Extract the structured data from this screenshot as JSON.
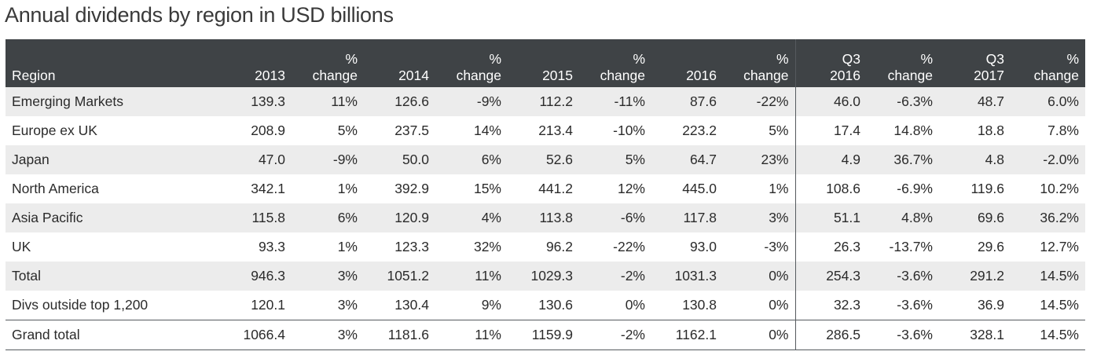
{
  "title": "Annual dividends by region in USD billions",
  "chart_data": {
    "type": "table",
    "title": "Annual dividends by region in USD billions",
    "columns": [
      "Region",
      "2013",
      "% change",
      "2014",
      "% change",
      "2015",
      "% change",
      "2016",
      "% change",
      "Q3 2016",
      "% change",
      "Q3 2017",
      "% change"
    ],
    "rows": [
      [
        "Emerging Markets",
        "139.3",
        "11%",
        "126.6",
        "-9%",
        "112.2",
        "-11%",
        "87.6",
        "-22%",
        "46.0",
        "-6.3%",
        "48.7",
        "6.0%"
      ],
      [
        "Europe ex UK",
        "208.9",
        "5%",
        "237.5",
        "14%",
        "213.4",
        "-10%",
        "223.2",
        "5%",
        "17.4",
        "14.8%",
        "18.8",
        "7.8%"
      ],
      [
        "Japan",
        "47.0",
        "-9%",
        "50.0",
        "6%",
        "52.6",
        "5%",
        "64.7",
        "23%",
        "4.9",
        "36.7%",
        "4.8",
        "-2.0%"
      ],
      [
        "North America",
        "342.1",
        "1%",
        "392.9",
        "15%",
        "441.2",
        "12%",
        "445.0",
        "1%",
        "108.6",
        "-6.9%",
        "119.6",
        "10.2%"
      ],
      [
        "Asia Pacific",
        "115.8",
        "6%",
        "120.9",
        "4%",
        "113.8",
        "-6%",
        "117.8",
        "3%",
        "51.1",
        "4.8%",
        "69.6",
        "36.2%"
      ],
      [
        "UK",
        "93.3",
        "1%",
        "123.3",
        "32%",
        "96.2",
        "-22%",
        "93.0",
        "-3%",
        "26.3",
        "-13.7%",
        "29.6",
        "12.7%"
      ],
      [
        "Total",
        "946.3",
        "3%",
        "1051.2",
        "11%",
        "1029.3",
        "-2%",
        "1031.3",
        "0%",
        "254.3",
        "-3.6%",
        "291.2",
        "14.5%"
      ],
      [
        "Divs outside top 1,200",
        "120.1",
        "3%",
        "130.4",
        "9%",
        "130.6",
        "0%",
        "130.8",
        "0%",
        "32.3",
        "-3.6%",
        "36.9",
        "14.5%"
      ],
      [
        "Grand total",
        "1066.4",
        "3%",
        "1181.6",
        "11%",
        "1159.9",
        "-2%",
        "1162.1",
        "0%",
        "286.5",
        "-3.6%",
        "328.1",
        "14.5%"
      ]
    ]
  },
  "colors": {
    "header_bg": "#3f4346",
    "header_text": "#ffffff",
    "stripe": "#ececec",
    "rule": "#555a5e"
  }
}
